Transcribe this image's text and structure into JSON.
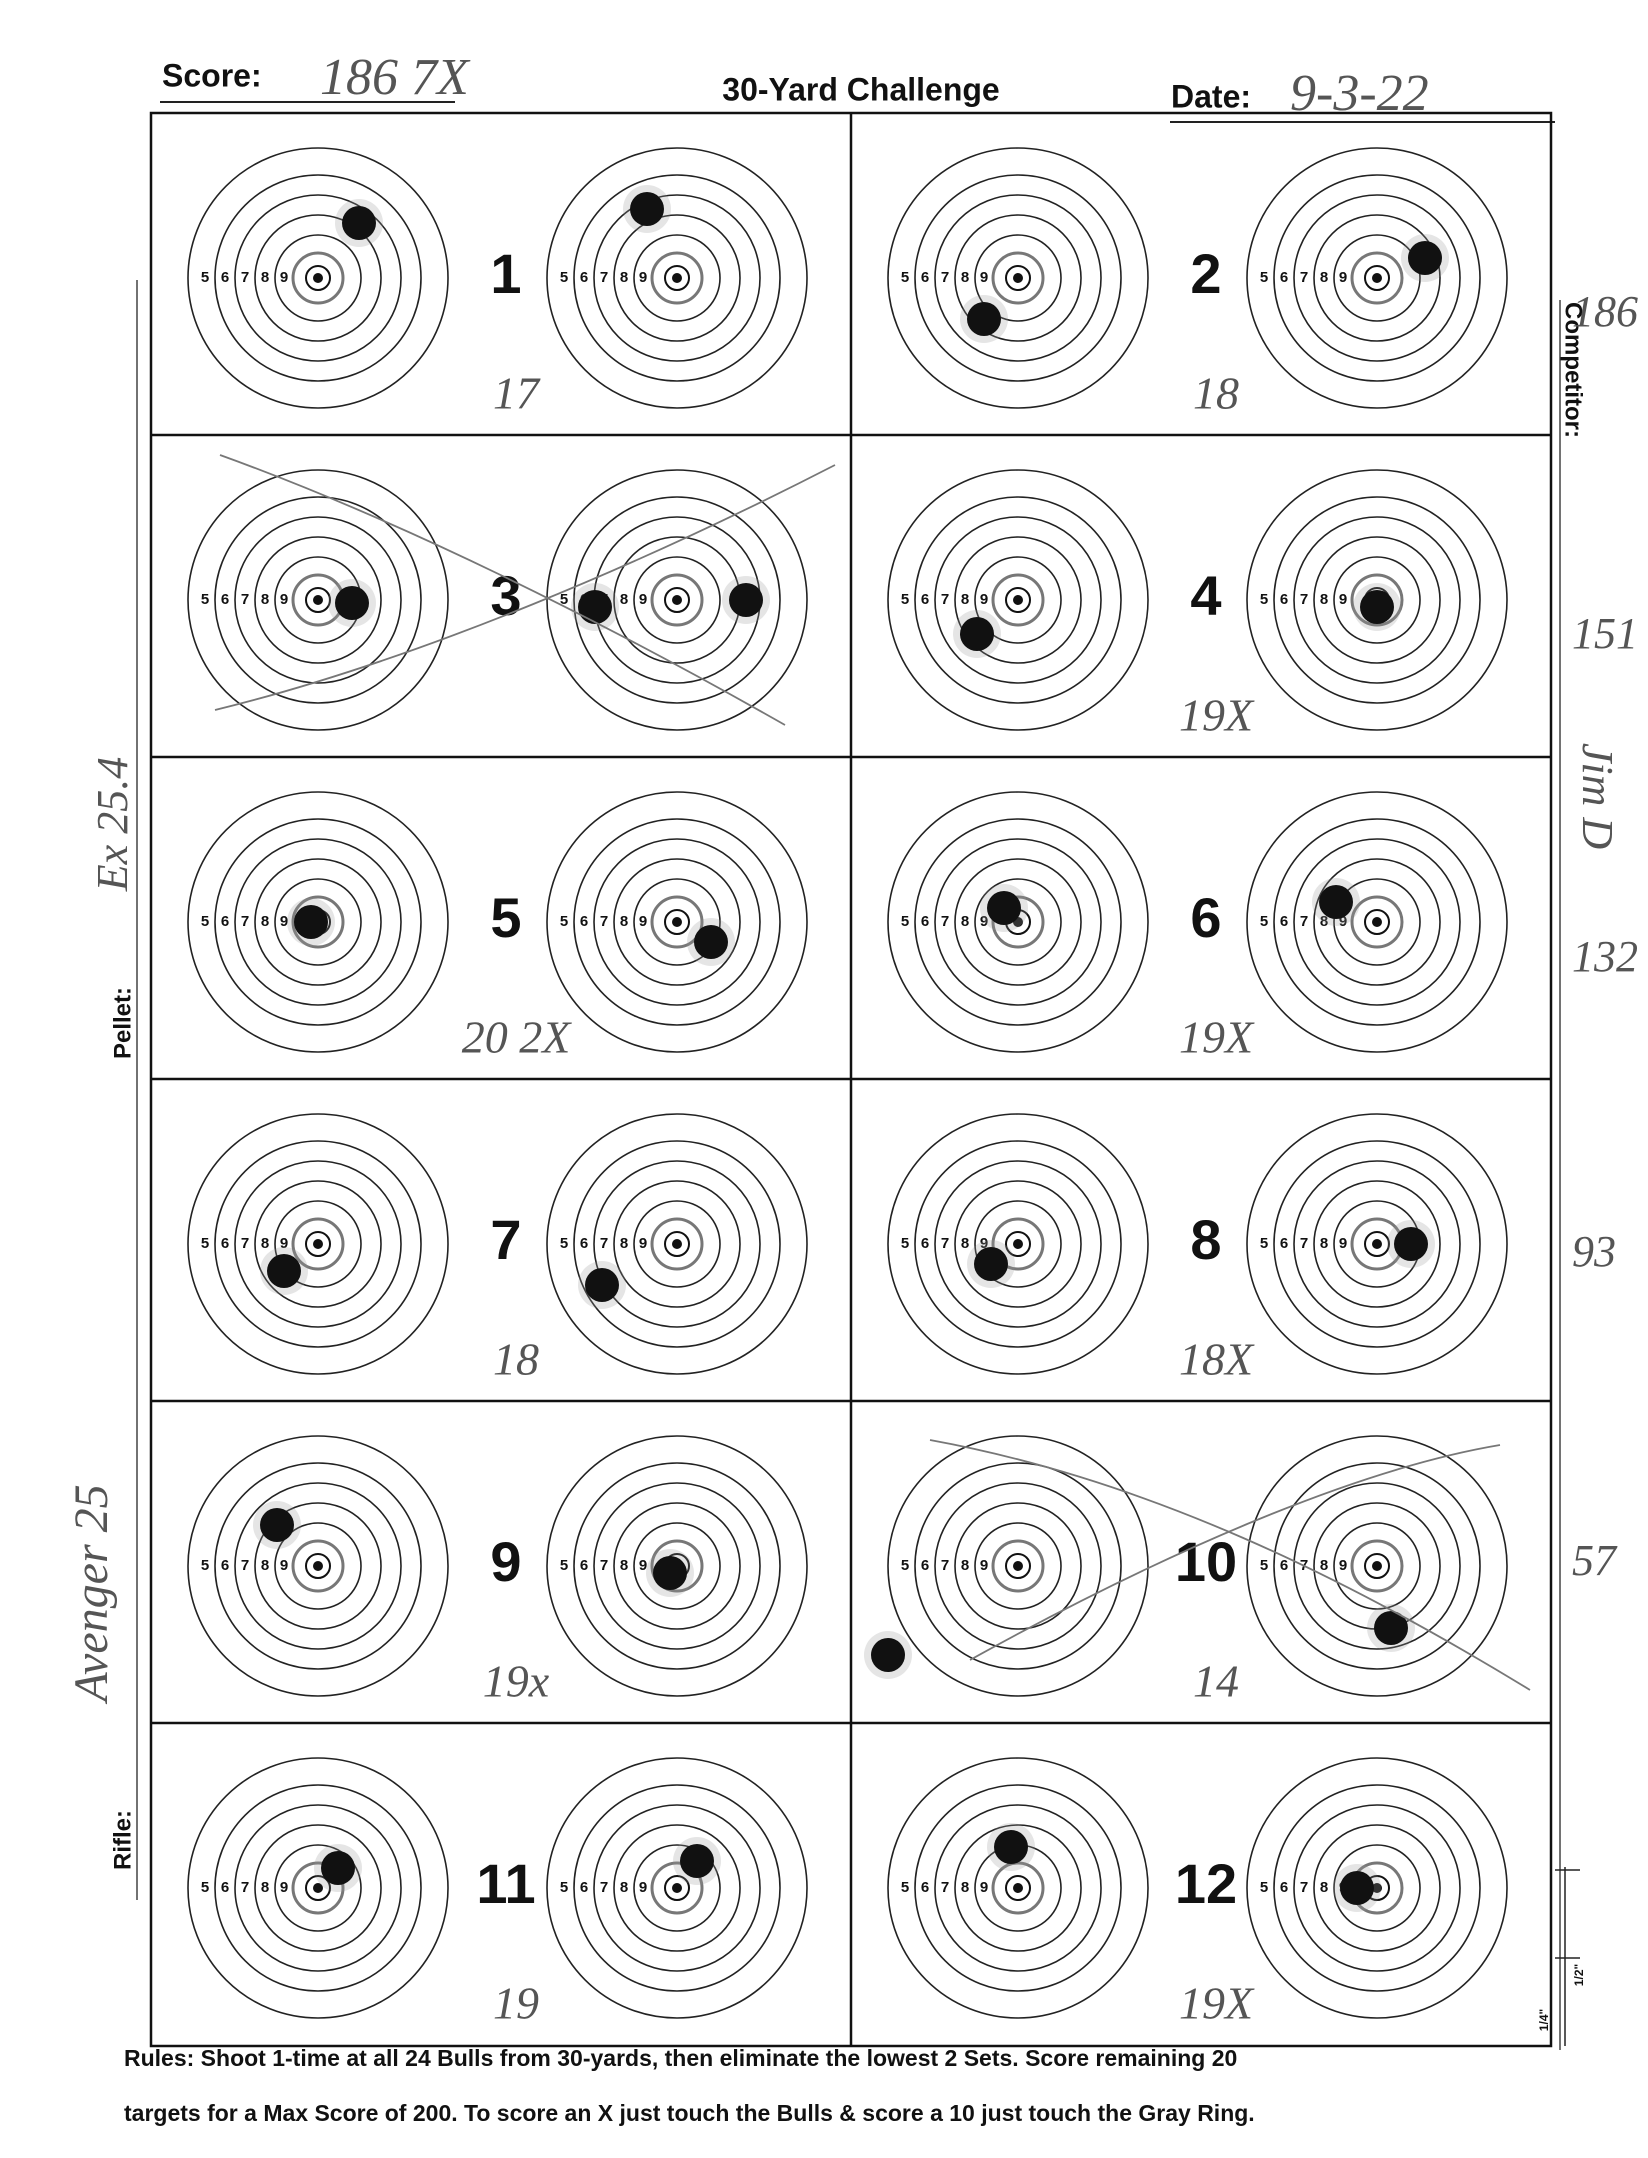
{
  "header": {
    "score_label": "Score:",
    "score": "186 7X",
    "title": "30-Yard Challenge",
    "date_label": "Date:",
    "date": "9-3-22"
  },
  "ring_labels": [
    "5",
    "6",
    "7",
    "8",
    "9"
  ],
  "sets": [
    {
      "number": "1",
      "score": "17"
    },
    {
      "number": "2",
      "score": "18"
    },
    {
      "number": "3"
    },
    {
      "number": "4",
      "score": "19X"
    },
    {
      "number": "5",
      "score": "20 2X"
    },
    {
      "number": "6",
      "score": "19X"
    },
    {
      "number": "7",
      "score": "18"
    },
    {
      "number": "8",
      "score": "18X"
    },
    {
      "number": "9",
      "score": "19x"
    },
    {
      "number": "10",
      "score": "14"
    },
    {
      "number": "11",
      "score": "19"
    },
    {
      "number": "12",
      "score": "19X"
    }
  ],
  "sidebar": {
    "competitor_label": "Competitor:",
    "competitor": "Jim D",
    "pellet_label": "Pellet:",
    "pellet": "Ex 25.4",
    "rifle_label": "Rifle:",
    "rifle": "Avenger 25",
    "tallies": [
      "186",
      "151",
      "132",
      "93",
      "57"
    ]
  },
  "scale_labels": [
    "1/4\"",
    "1/2\""
  ],
  "rules": [
    "Rules: Shoot 1-time at all 24 Bulls from 30-yards, then eliminate the lowest 2 Sets. Score remaining 20",
    "targets for a Max Score of 200. To score an X just touch the Bulls & score a 10 just touch the Gray Ring."
  ]
}
